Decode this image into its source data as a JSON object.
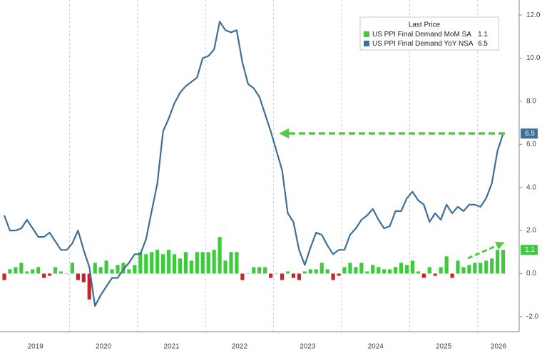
{
  "chart_data": {
    "type": "combo",
    "legend_title": "Last Price",
    "x_labels": [
      "2019",
      "2020",
      "2021",
      "2022",
      "2023",
      "2024",
      "2025",
      "2026"
    ],
    "series": [
      {
        "name": "US PPI Final Demand MoM SA",
        "type": "bar",
        "color": "#3ec93e",
        "negative_color": "#d32027",
        "values": [
          -0.3,
          0.2,
          0.3,
          0.5,
          0.1,
          0.2,
          0.3,
          -0.2,
          -0.1,
          0.3,
          0.1,
          0.0,
          0.5,
          -0.3,
          -0.4,
          -1.2,
          0.5,
          0.3,
          0.6,
          0.2,
          0.4,
          0.5,
          0.2,
          0.4,
          1.0,
          0.9,
          1.0,
          1.1,
          0.9,
          1.1,
          0.9,
          0.7,
          1.0,
          0.6,
          1.0,
          1.0,
          1.0,
          1.1,
          1.7,
          0.6,
          1.0,
          1.0,
          -0.3,
          0.0,
          0.3,
          0.3,
          0.3,
          -0.2,
          0.0,
          -0.3,
          0.1,
          -0.2,
          -0.3,
          0.1,
          0.2,
          0.2,
          0.5,
          0.2,
          -0.3,
          -0.1,
          0.3,
          0.5,
          0.3,
          0.5,
          0.1,
          0.4,
          0.3,
          0.2,
          0.2,
          0.3,
          0.5,
          0.4,
          0.6,
          0.1,
          -0.2,
          0.3,
          -0.1,
          0.3,
          0.8,
          -0.2,
          0.6,
          0.3,
          0.4,
          0.5,
          0.5,
          0.6,
          0.7,
          1.1,
          1.1
        ]
      },
      {
        "name": "US PPI Final Demand YoY NSA",
        "type": "line",
        "color": "#3d6f98",
        "values": [
          2.7,
          2.0,
          2.0,
          2.1,
          2.5,
          2.1,
          1.7,
          1.7,
          1.9,
          1.5,
          1.1,
          1.1,
          1.4,
          2.0,
          1.1,
          0.3,
          -1.5,
          -1.0,
          -0.6,
          -0.2,
          -0.2,
          0.2,
          0.5,
          0.9,
          0.9,
          1.6,
          2.9,
          4.2,
          6.6,
          7.2,
          7.9,
          8.4,
          8.7,
          8.9,
          9.1,
          10.0,
          10.1,
          10.4,
          11.7,
          11.3,
          11.2,
          11.3,
          9.8,
          8.8,
          8.6,
          8.2,
          7.4,
          6.6,
          5.7,
          4.8,
          2.8,
          2.4,
          1.1,
          0.4,
          1.2,
          1.9,
          1.8,
          1.3,
          0.9,
          1.1,
          1.1,
          1.8,
          2.1,
          2.5,
          2.7,
          3.0,
          2.5,
          2.1,
          2.2,
          2.9,
          2.9,
          3.5,
          3.8,
          3.4,
          3.2,
          2.4,
          2.8,
          2.5,
          3.2,
          2.8,
          3.1,
          2.9,
          3.2,
          3.2,
          3.1,
          3.5,
          4.2,
          5.7,
          6.5
        ]
      }
    ],
    "ylim": [
      -2.7,
      12.7
    ],
    "yticks": [
      {
        "value": -2,
        "label": "-2.0"
      },
      {
        "value": 0,
        "label": "0.0"
      },
      {
        "value": 2,
        "label": "2.0"
      },
      {
        "value": 4,
        "label": "4.0"
      },
      {
        "value": 6,
        "label": "6.0"
      },
      {
        "value": 8,
        "label": "8.0"
      },
      {
        "value": 10,
        "label": "10.0"
      },
      {
        "value": 12,
        "label": "12.0"
      }
    ]
  }
}
